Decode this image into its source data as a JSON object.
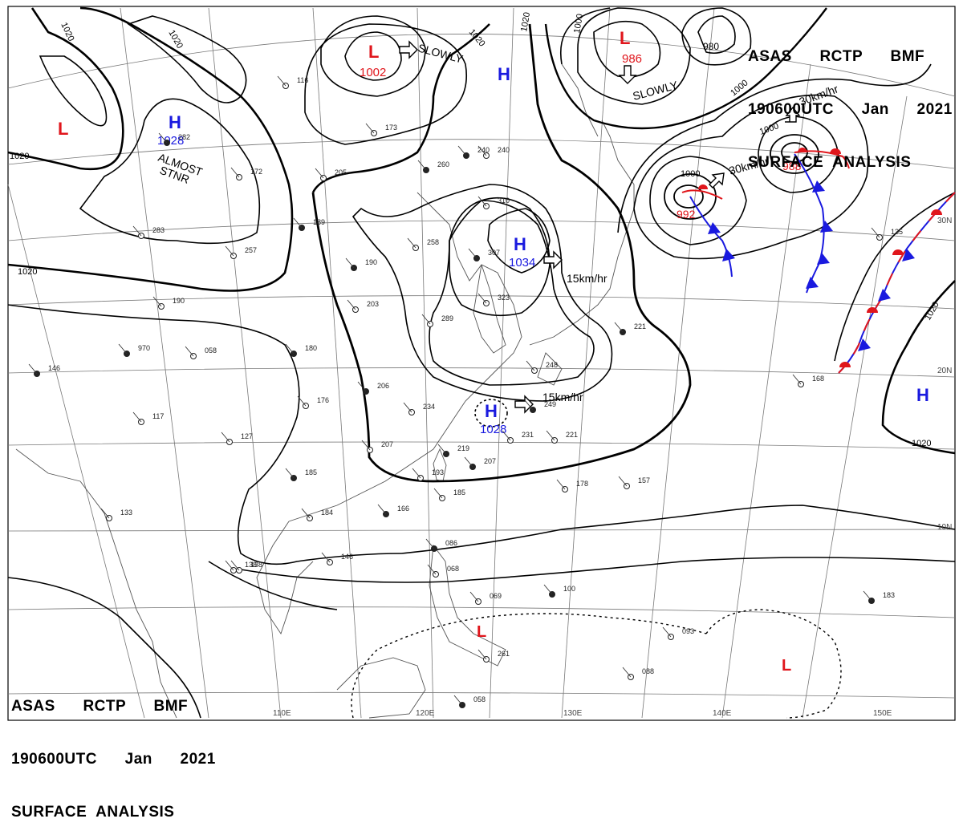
{
  "header_top": {
    "line1": "ASAS      RCTP      BMF",
    "line2": "190600UTC      Jan      2021",
    "line3": "SURFACE  ANALYSIS"
  },
  "header_bottom": {
    "line1": "ASAS      RCTP      BMF",
    "line2": "190600UTC      Jan      2021",
    "line3": "SURFACE  ANALYSIS"
  },
  "pressure_centers": [
    {
      "type": "L",
      "pressure": "",
      "color": "#e0161c"
    },
    {
      "type": "H",
      "pressure": "1028",
      "color": "#1a1adf"
    },
    {
      "type": "L",
      "pressure": "1002",
      "color": "#e0161c"
    },
    {
      "type": "H",
      "pressure": "",
      "color": "#1a1adf"
    },
    {
      "type": "L",
      "pressure": "986",
      "color": "#e0161c"
    },
    {
      "type": "L",
      "pressure": "980",
      "color": "#000000"
    },
    {
      "type": "L",
      "pressure": "988",
      "color": "#e0161c"
    },
    {
      "type": "L",
      "pressure": "992",
      "color": "#e0161c"
    },
    {
      "type": "H",
      "pressure": "1034",
      "color": "#1a1adf"
    },
    {
      "type": "H",
      "pressure": "1028",
      "color": "#1a1adf"
    },
    {
      "type": "H",
      "pressure": "",
      "color": "#1a1adf"
    },
    {
      "type": "L",
      "pressure": "",
      "color": "#e0161c"
    },
    {
      "type": "L",
      "pressure": "",
      "color": "#e0161c"
    }
  ],
  "motion_labels": {
    "slowly_1": "SLOWLY",
    "slowly_2": "SLOWLY",
    "speed_1034": "15km/hr",
    "speed_1028": "15km/hr",
    "speed_988": "30km/hr",
    "speed_992": "30km/hr",
    "almost": "ALMOST",
    "stnr": "STNR"
  },
  "isobar_labels": [
    "1020",
    "1020",
    "1020",
    "1020",
    "1020",
    "1020",
    "1000",
    "1000",
    "1000",
    "1000",
    "1020",
    "1020"
  ],
  "longitude_labels": [
    "110E",
    "120E",
    "130E",
    "140E",
    "150E"
  ],
  "latitude_labels": [
    "30N",
    "20N",
    "10N"
  ],
  "stations": [
    "146",
    "117",
    "133",
    "970",
    "058",
    "190",
    "180",
    "176",
    "127",
    "185",
    "184",
    "138",
    "206",
    "207",
    "234",
    "219",
    "193",
    "185",
    "166",
    "146",
    "203",
    "190",
    "248",
    "258",
    "307",
    "310",
    "240",
    "260",
    "205",
    "172",
    "189",
    "257",
    "283",
    "282",
    "116",
    "173",
    "221",
    "323",
    "289",
    "249",
    "231",
    "221",
    "207",
    "178",
    "157",
    "086",
    "068",
    "069",
    "100",
    "093",
    "088",
    "058",
    "168",
    "135",
    "183",
    "138",
    "261",
    "240"
  ],
  "colors": {
    "low": "#e0161c",
    "high": "#1a1adf",
    "cold_front": "#1a1adf",
    "warm_front": "#e0161c",
    "isobar": "#000000",
    "grid": "#777777"
  }
}
